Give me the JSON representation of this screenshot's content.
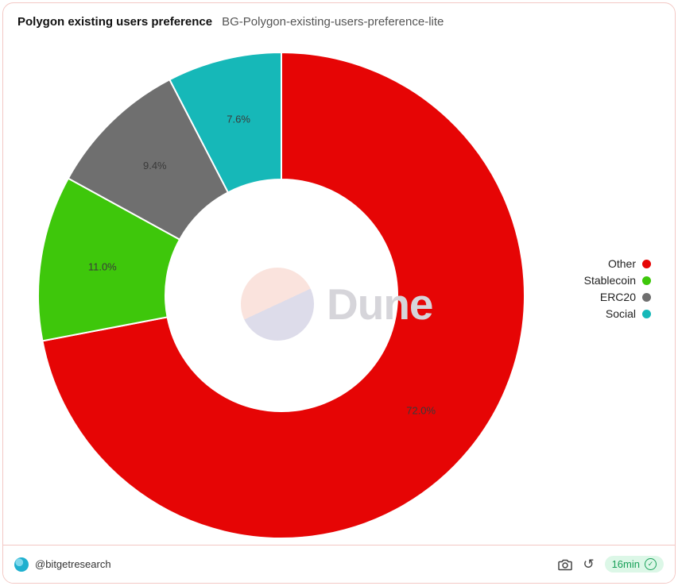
{
  "header": {
    "title": "Polygon existing users preference",
    "subtitle": "BG-Polygon-existing-users-preference-lite"
  },
  "chart_data": {
    "type": "pie",
    "subtype": "donut",
    "title": "Polygon existing users preference",
    "categories": [
      "Other",
      "Stablecoin",
      "ERC20",
      "Social"
    ],
    "values": [
      72.0,
      11.0,
      9.4,
      7.6
    ],
    "labels": [
      "72.0%",
      "11.0%",
      "9.4%",
      "7.6%"
    ],
    "colors": [
      "#e60505",
      "#3ec70b",
      "#6f6f6f",
      "#16b8b8"
    ],
    "legend_position": "right",
    "start_angle_deg": 0,
    "direction": "clockwise",
    "units": "%"
  },
  "watermark": {
    "text": "Dune"
  },
  "footer": {
    "handle": "@bitgetresearch",
    "refresh_badge": "16min"
  },
  "icons": {
    "check": "✓",
    "refresh": "↺"
  }
}
